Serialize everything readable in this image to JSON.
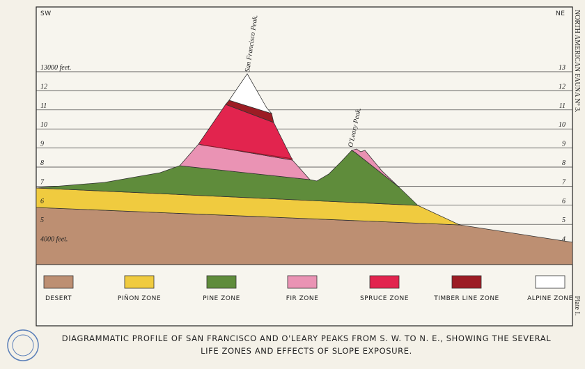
{
  "header": {
    "left": "SW",
    "right": "NE",
    "series_title": "NORTH AMERICAN FAUNA Nº 3."
  },
  "elevations": {
    "left": [
      "13000 feet.",
      "12",
      "11",
      "10",
      "9",
      "8",
      "7",
      "6",
      "5",
      "4000 feet."
    ],
    "right": [
      "13",
      "12",
      "11",
      "10",
      "9",
      "8",
      "7",
      "6",
      "5",
      "4"
    ]
  },
  "peaks": {
    "san_francisco": "San Francisco Peak.",
    "oleary": "O'Leary Peak."
  },
  "legend": [
    "DESERT",
    "PIÑON ZONE",
    "PINE ZONE",
    "FIR ZONE",
    "SPRUCE ZONE",
    "TIMBER LINE ZONE",
    "ALPINE ZONE"
  ],
  "plate": "Plate I.",
  "caption": [
    "DIAGRAMMATIC PROFILE OF SAN FRANCISCO AND O'LEARY PEAKS FROM S. W. TO N. E., SHOWING THE SEVERAL",
    "LIFE ZONES AND EFFECTS OF SLOPE EXPOSURE."
  ]
}
